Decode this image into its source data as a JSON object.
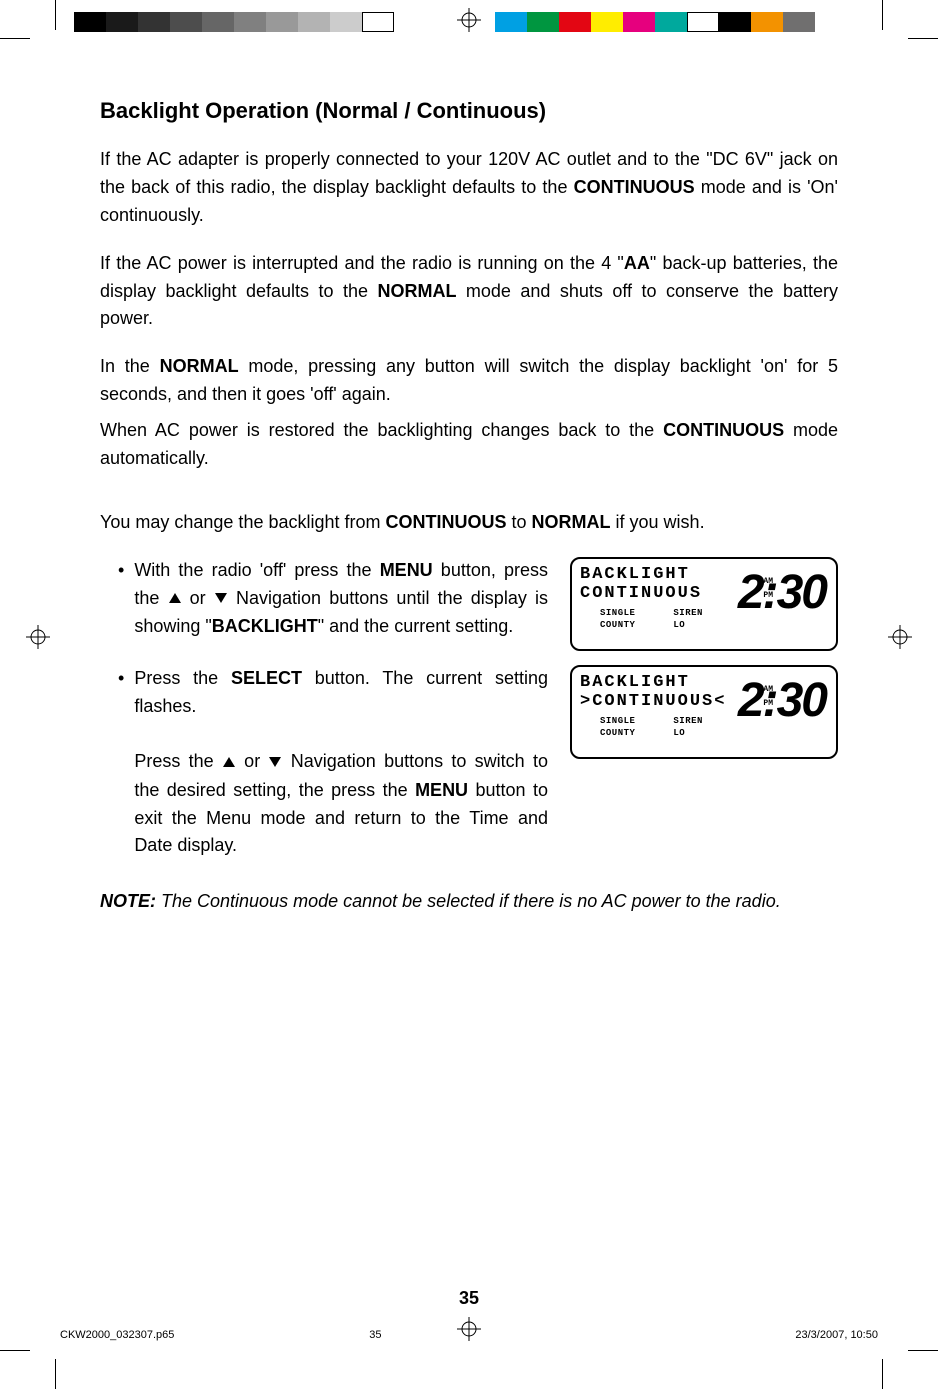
{
  "print_marks": {
    "grayscale_bar": [
      "#000000",
      "#1a1a1a",
      "#333333",
      "#4d4d4d",
      "#666666",
      "#808080",
      "#999999",
      "#b3b3b3",
      "#cccccc",
      "#ffffff"
    ],
    "color_bar": [
      "#00a0e3",
      "#009640",
      "#e30613",
      "#ffed00",
      "#e6007e",
      "#00a99d",
      "#ffffff",
      "#000000",
      "#f39200",
      "#706f6f"
    ]
  },
  "heading": "Backlight Operation (Normal / Continuous)",
  "para1": {
    "pre": "If the AC adapter is properly connected to your 120V AC outlet and to the \"DC 6V\" jack on the back of this radio, the display backlight defaults to the ",
    "b1": "CONTINUOUS",
    "post": " mode and is 'On' continuously."
  },
  "para2": {
    "p1": "If the AC power is interrupted and the radio is running on the 4 \"",
    "b1": "AA",
    "p2": "\" back-up batteries, the display backlight defaults to the ",
    "b2": "NORMAL",
    "p3": " mode and shuts off to conserve the battery power."
  },
  "para3": {
    "p1": "In the ",
    "b1": "NORMAL",
    "p2": " mode, pressing any button will switch the display backlight 'on' for 5 seconds, and then it goes 'off' again."
  },
  "para4": {
    "p1": "When AC power is restored the backlighting changes back to the ",
    "b1": "CONTINUOUS",
    "p2": " mode automatically."
  },
  "para5": {
    "p1": "You may change the backlight from ",
    "b1": "CONTINUOUS",
    "p2": " to ",
    "b2": "NORMAL",
    "p3": " if you wish."
  },
  "bullet1": {
    "p1": "With the radio 'off' press the ",
    "b1": "MENU",
    "p2": " button, press the ",
    "p3": " or ",
    "p4": " Navigation buttons until the display is showing \"",
    "b2": "BACKLIGHT",
    "p5": "\" and the current setting."
  },
  "bullet2": {
    "p1": "Press the ",
    "b1": "SELECT",
    "p2": " button. The current setting flashes."
  },
  "bullet2b": {
    "p1": "Press the ",
    "p2": " or ",
    "p3": " Navigation buttons to switch to the desired setting, the press the ",
    "b1": "MENU",
    "p4": " button to exit the Menu mode and return to the Time and Date display."
  },
  "lcd1": {
    "line1": "BACKLIGHT",
    "line2": "CONTINUOUS",
    "small_l1": "SINGLE",
    "small_l2": "COUNTY",
    "small_r1": "SIREN",
    "small_r2": "LO",
    "time": "2:30",
    "am": "AM",
    "pm": "PM"
  },
  "lcd2": {
    "line1": "BACKLIGHT",
    "line2_pre": ">",
    "line2": "CONTINUOUS",
    "line2_post": "<",
    "small_l1": "SINGLE",
    "small_l2": "COUNTY",
    "small_r1": "SIREN",
    "small_r2": "LO",
    "time": "2:30",
    "am": "AM",
    "pm": "PM"
  },
  "note": {
    "b1": "NOTE:",
    "t1": " The Continuous mode cannot be selected if there is no AC power to the radio."
  },
  "page_number": "35",
  "footer": {
    "file": "CKW2000_032307.p65",
    "pg": "35",
    "date": "23/3/2007, 10:50"
  }
}
